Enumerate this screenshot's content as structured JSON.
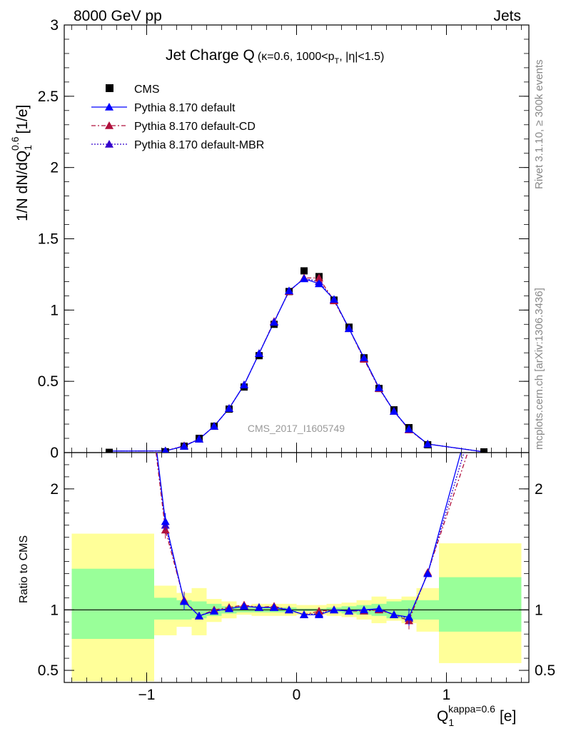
{
  "header": {
    "energy_label": "8000 GeV pp",
    "process_label": "Jets"
  },
  "side_labels": {
    "rivet": "Rivet 3.1.10, ≥ 300k events",
    "mcplots": "mcplots.cern.ch [arXiv:1306.3436]"
  },
  "chart_data": {
    "type": "scatter",
    "title": "Jet Charge Q",
    "title_cut": "(κ=0.6, 1000<p",
    "title_cut_sub": "T",
    "title_cut_end": ", |η|<1.5)",
    "analysis_label": "CMS_2017_I1605749",
    "x_axis": {
      "label": "Q",
      "label_sub": "1",
      "label_sup": "kappa=0.6",
      "label_unit": "[e]",
      "range": [
        -1.55,
        1.55
      ],
      "ticks": [
        "-1",
        "0",
        "1"
      ]
    },
    "main_panel": {
      "ylabel": "1/N dN/dQ",
      "ylabel_sub": "1",
      "ylabel_sup": "0.6",
      "ylabel_unit": "[1/e]",
      "ylim": [
        0,
        3
      ],
      "ticks": [
        "0",
        "0.5",
        "1",
        "1.5",
        "2",
        "2.5",
        "3"
      ]
    },
    "ratio_panel": {
      "ylabel": "Ratio to CMS",
      "ylim": [
        0.4,
        2.3
      ],
      "ticks": [
        "0.5",
        "1",
        "2"
      ]
    },
    "legend": [
      "CMS",
      "Pythia 8.170 default",
      "Pythia 8.170 default-CD",
      "Pythia 8.170 default-MBR"
    ],
    "legend_position": "top-left",
    "x": [
      -1.25,
      -0.875,
      -0.75,
      -0.65,
      -0.55,
      -0.45,
      -0.35,
      -0.25,
      -0.15,
      -0.05,
      0.05,
      0.15,
      0.25,
      0.35,
      0.45,
      0.55,
      0.65,
      0.75,
      0.875,
      1.25
    ],
    "bin_edges": [
      -1.5,
      -0.95,
      -0.8,
      -0.7,
      -0.6,
      -0.5,
      -0.4,
      -0.3,
      -0.2,
      -0.1,
      0.0,
      0.1,
      0.2,
      0.3,
      0.4,
      0.5,
      0.6,
      0.7,
      0.8,
      0.95,
      1.5
    ],
    "series": [
      {
        "name": "CMS",
        "color": "#000000",
        "marker": "square",
        "values": [
          0.002,
          0.006,
          0.045,
          0.1,
          0.185,
          0.305,
          0.46,
          0.68,
          0.9,
          1.13,
          1.275,
          1.235,
          1.07,
          0.88,
          0.665,
          0.45,
          0.3,
          0.175,
          0.055,
          0.005
        ]
      },
      {
        "name": "Pythia 8.170 default",
        "color": "#0000ff",
        "marker": "triangle",
        "dash": "solid",
        "values": [
          0.011,
          0.012,
          0.045,
          0.095,
          0.185,
          0.31,
          0.475,
          0.695,
          0.915,
          1.135,
          1.22,
          1.185,
          1.075,
          0.87,
          0.665,
          0.455,
          0.29,
          0.165,
          0.06,
          0.005
        ]
      },
      {
        "name": "Pythia 8.170 default-CD",
        "color": "#b0103c",
        "marker": "triangle",
        "dash": "dashdot",
        "values": [
          0.011,
          0.012,
          0.048,
          0.095,
          0.185,
          0.31,
          0.475,
          0.695,
          0.92,
          1.13,
          1.225,
          1.225,
          1.065,
          0.87,
          0.655,
          0.45,
          0.29,
          0.16,
          0.06,
          0.005
        ]
      },
      {
        "name": "Pythia 8.170 default-MBR",
        "color": "#3300cc",
        "marker": "triangle",
        "dash": "dotted",
        "values": [
          0.011,
          0.012,
          0.047,
          0.095,
          0.185,
          0.31,
          0.475,
          0.695,
          0.918,
          1.133,
          1.222,
          1.2,
          1.07,
          0.872,
          0.66,
          0.452,
          0.29,
          0.163,
          0.06,
          0.005
        ]
      }
    ],
    "ratio_series": [
      {
        "name": "Pythia 8.170 default",
        "values": [
          5.5,
          1.73,
          1.07,
          0.95,
          0.99,
          1.01,
          1.03,
          1.02,
          1.02,
          1.0,
          0.96,
          0.96,
          1.0,
          0.99,
          1.0,
          1.01,
          0.96,
          0.94,
          1.3,
          3.0
        ]
      },
      {
        "name": "Pythia 8.170 default-CD",
        "values": [
          5.5,
          1.66,
          1.08,
          0.95,
          1.0,
          1.02,
          1.04,
          1.02,
          1.03,
          1.0,
          0.96,
          0.99,
          1.0,
          0.99,
          0.99,
          1.0,
          0.96,
          0.91,
          1.31,
          2.7
        ]
      },
      {
        "name": "Pythia 8.170 default-MBR",
        "values": [
          5.5,
          1.7,
          1.07,
          0.95,
          0.99,
          1.01,
          1.03,
          1.02,
          1.02,
          1.0,
          0.96,
          0.97,
          1.0,
          0.99,
          1.0,
          1.005,
          0.96,
          0.93,
          1.3,
          2.85
        ]
      }
    ],
    "uncertainty_bands": {
      "inner_color": "#99ff99",
      "outer_color": "#ffff99",
      "inner_lo": [
        0.76,
        0.92,
        0.92,
        0.93,
        0.95,
        0.97,
        0.98,
        0.98,
        0.98,
        0.98,
        0.99,
        0.99,
        0.98,
        0.97,
        0.96,
        0.95,
        0.93,
        0.92,
        0.92,
        0.82
      ],
      "inner_hi": [
        1.34,
        1.1,
        1.08,
        1.07,
        1.05,
        1.03,
        1.02,
        1.02,
        1.02,
        1.02,
        1.01,
        1.01,
        1.02,
        1.03,
        1.04,
        1.05,
        1.07,
        1.08,
        1.08,
        1.27
      ],
      "outer_lo": [
        0.41,
        0.79,
        0.86,
        0.79,
        0.9,
        0.93,
        0.96,
        0.95,
        0.95,
        0.95,
        0.96,
        0.96,
        0.95,
        0.94,
        0.92,
        0.89,
        0.91,
        0.89,
        0.82,
        0.56
      ],
      "outer_hi": [
        1.63,
        1.2,
        1.14,
        1.18,
        1.09,
        1.07,
        1.04,
        1.05,
        1.05,
        1.05,
        1.04,
        1.04,
        1.05,
        1.06,
        1.08,
        1.11,
        1.09,
        1.11,
        1.18,
        1.55
      ]
    }
  }
}
